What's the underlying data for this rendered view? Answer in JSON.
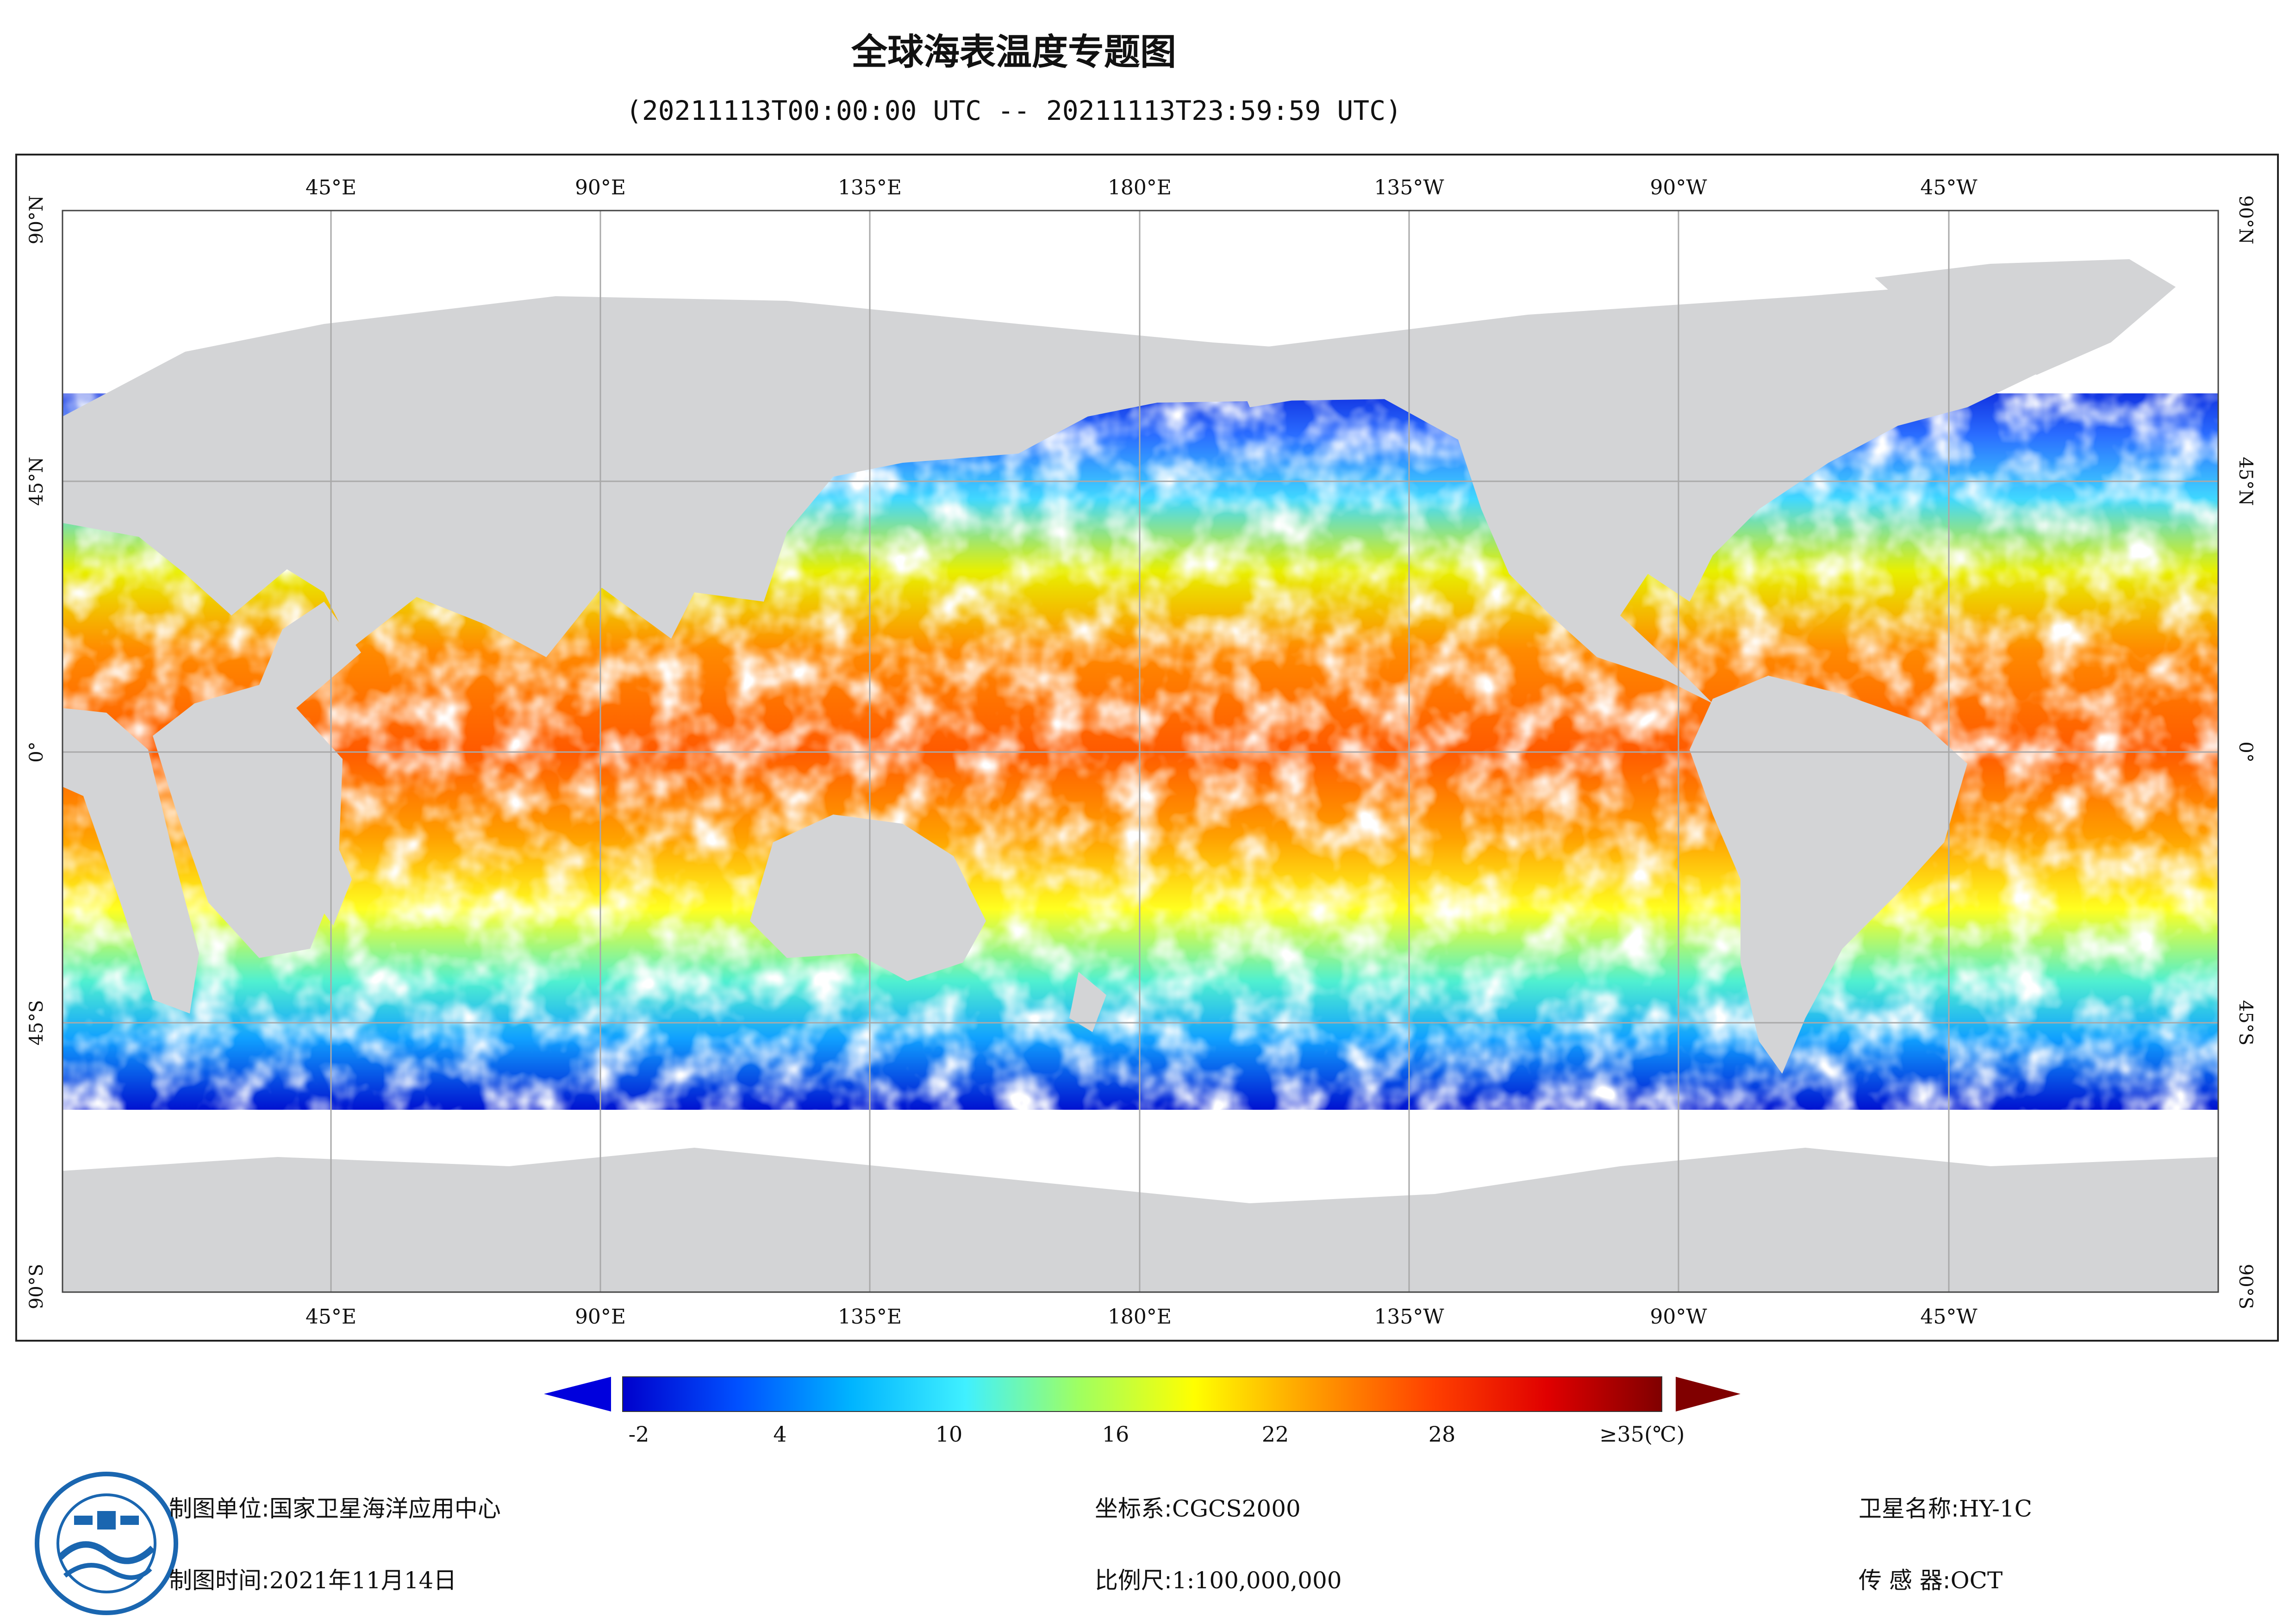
{
  "title": "全球海表温度专题图",
  "time_range": "(20211113T00:00:00 UTC -- 20211113T23:59:59 UTC)",
  "map": {
    "top_labels": [
      "45°E",
      "90°E",
      "135°E",
      "180°E",
      "135°W",
      "90°W",
      "45°W"
    ],
    "bottom_labels": [
      "45°E",
      "90°E",
      "135°E",
      "180°E",
      "135°W",
      "90°W",
      "45°W"
    ],
    "lat_labels": [
      "90°N",
      "45°N",
      "0°",
      "45°S",
      "90°S"
    ],
    "colors": {
      "land": "#d3d4d6",
      "cloud": "#ffffff",
      "grid": "#a9a9a9",
      "frame": "#222222"
    }
  },
  "legend": {
    "ticks": [
      "-2",
      "4",
      "10",
      "16",
      "22",
      "28",
      "≥35(℃)"
    ],
    "min_value": -2,
    "max_value": 35,
    "colormap": [
      "#0000cc",
      "#0050ff",
      "#00b4ff",
      "#40f0ff",
      "#a0ff60",
      "#ffff00",
      "#ffa000",
      "#ff4000",
      "#e00000",
      "#800000"
    ],
    "under_color": "#0000dd",
    "over_color": "#800000"
  },
  "footer": {
    "unit_label": "制图单位:",
    "unit_value": "国家卫星海洋应用中心",
    "time_label": "制图时间:",
    "time_value": "2021年11月14日",
    "crs_label": "坐标系:",
    "crs_value": "CGCS2000",
    "scale_label": "比例尺:",
    "scale_value": "1:100,000,000",
    "satellite_label": "卫星名称:",
    "satellite_value": "HY-1C",
    "sensor_label": "传 感 器:",
    "sensor_value": "OCT"
  }
}
